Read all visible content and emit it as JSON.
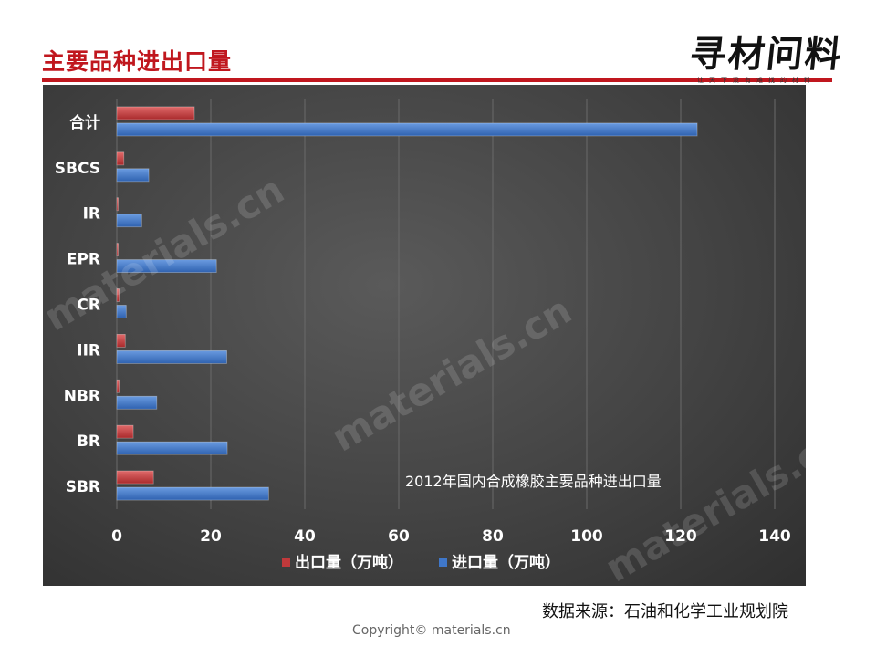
{
  "slide": {
    "title": "主要品种进出口量",
    "source": "数据来源：石油和化学工业规划院",
    "copyright": "Copyright© materials.cn"
  },
  "logo": {
    "text": "寻材问料",
    "slogan": "让天下没有难找的材料"
  },
  "watermark": "materials.cn",
  "colors": {
    "export": "#c0393b",
    "import": "#3f77c9",
    "title_red": "#c0171e"
  },
  "chart_data": {
    "type": "bar",
    "orientation": "horizontal",
    "categories": [
      "合计",
      "SBCS",
      "IR",
      "EPR",
      "CR",
      "IIR",
      "NBR",
      "BR",
      "SBR"
    ],
    "series": [
      {
        "name": "出口量（万吨）",
        "values": [
          16.5,
          1.5,
          0.1,
          0.2,
          0.5,
          1.8,
          0.5,
          3.5,
          7.8
        ]
      },
      {
        "name": "进口量（万吨）",
        "values": [
          123.5,
          6.8,
          5.3,
          21.2,
          2.0,
          23.4,
          8.5,
          23.5,
          32.3
        ]
      }
    ],
    "annotation": "2012年国内合成橡胶主要品种进出口量",
    "xlim": [
      0,
      140
    ],
    "xticks": [
      0,
      20,
      40,
      60,
      80,
      100,
      120,
      140
    ],
    "grid": "vertical",
    "legend_position": "bottom"
  }
}
